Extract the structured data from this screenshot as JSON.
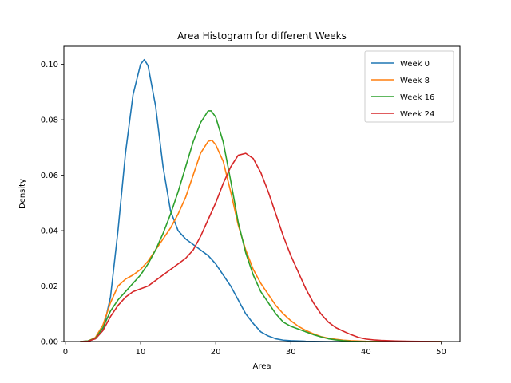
{
  "chart_data": {
    "type": "line",
    "title": "Area Histogram for different Weeks",
    "xlabel": "Area",
    "ylabel": "Density",
    "xlim": [
      -0.2,
      52.5
    ],
    "ylim": [
      0,
      0.1065
    ],
    "xticks": [
      0,
      10,
      20,
      30,
      40,
      50
    ],
    "xtick_labels": [
      "0",
      "10",
      "20",
      "30",
      "40",
      "50"
    ],
    "yticks": [
      0,
      0.02,
      0.04,
      0.06,
      0.08,
      0.1
    ],
    "ytick_labels": [
      "0.00",
      "0.02",
      "0.04",
      "0.06",
      "0.08",
      "0.10"
    ],
    "grid": false,
    "legend_position": "top-right",
    "series": [
      {
        "name": "Week 0",
        "color": "#1f77b4",
        "points": [
          [
            2,
            0
          ],
          [
            3,
            0.0002
          ],
          [
            4,
            0.001
          ],
          [
            5,
            0.004
          ],
          [
            6,
            0.016
          ],
          [
            7,
            0.04
          ],
          [
            8,
            0.068
          ],
          [
            9,
            0.089
          ],
          [
            10,
            0.1
          ],
          [
            10.5,
            0.1017
          ],
          [
            11,
            0.0995
          ],
          [
            12,
            0.085
          ],
          [
            13,
            0.063
          ],
          [
            14,
            0.047
          ],
          [
            15,
            0.04
          ],
          [
            16,
            0.037
          ],
          [
            17,
            0.035
          ],
          [
            18,
            0.033
          ],
          [
            19,
            0.031
          ],
          [
            20,
            0.028
          ],
          [
            21,
            0.024
          ],
          [
            22,
            0.02
          ],
          [
            23,
            0.015
          ],
          [
            24,
            0.01
          ],
          [
            25,
            0.0065
          ],
          [
            26,
            0.0035
          ],
          [
            27,
            0.002
          ],
          [
            28,
            0.001
          ],
          [
            29,
            0.0005
          ],
          [
            30,
            0.0003
          ],
          [
            32,
            0.0001
          ],
          [
            35,
            0
          ],
          [
            40,
            0
          ],
          [
            50,
            0
          ]
        ]
      },
      {
        "name": "Week 8",
        "color": "#ff7f0e",
        "points": [
          [
            2,
            0
          ],
          [
            3,
            0.0002
          ],
          [
            4,
            0.0015
          ],
          [
            5,
            0.006
          ],
          [
            6,
            0.014
          ],
          [
            7,
            0.02
          ],
          [
            8,
            0.0225
          ],
          [
            9,
            0.024
          ],
          [
            10,
            0.026
          ],
          [
            11,
            0.029
          ],
          [
            12,
            0.033
          ],
          [
            13,
            0.037
          ],
          [
            14,
            0.041
          ],
          [
            15,
            0.046
          ],
          [
            16,
            0.052
          ],
          [
            17,
            0.06
          ],
          [
            18,
            0.068
          ],
          [
            19,
            0.0722
          ],
          [
            19.5,
            0.0726
          ],
          [
            20,
            0.071
          ],
          [
            21,
            0.065
          ],
          [
            22,
            0.054
          ],
          [
            23,
            0.042
          ],
          [
            24,
            0.033
          ],
          [
            25,
            0.026
          ],
          [
            26,
            0.021
          ],
          [
            27,
            0.017
          ],
          [
            28,
            0.013
          ],
          [
            29,
            0.01
          ],
          [
            30,
            0.0075
          ],
          [
            31,
            0.0055
          ],
          [
            32,
            0.004
          ],
          [
            33,
            0.0028
          ],
          [
            34,
            0.0018
          ],
          [
            35,
            0.0012
          ],
          [
            36,
            0.0008
          ],
          [
            37,
            0.0005
          ],
          [
            38,
            0.0003
          ],
          [
            40,
            0.0001
          ],
          [
            45,
            0
          ],
          [
            50,
            0
          ]
        ]
      },
      {
        "name": "Week 16",
        "color": "#2ca02c",
        "points": [
          [
            2,
            0
          ],
          [
            3,
            0.0002
          ],
          [
            4,
            0.0012
          ],
          [
            5,
            0.005
          ],
          [
            6,
            0.011
          ],
          [
            7,
            0.015
          ],
          [
            8,
            0.018
          ],
          [
            9,
            0.021
          ],
          [
            10,
            0.024
          ],
          [
            11,
            0.028
          ],
          [
            12,
            0.033
          ],
          [
            13,
            0.039
          ],
          [
            14,
            0.046
          ],
          [
            15,
            0.054
          ],
          [
            16,
            0.063
          ],
          [
            17,
            0.072
          ],
          [
            18,
            0.079
          ],
          [
            19,
            0.0832
          ],
          [
            19.4,
            0.0832
          ],
          [
            20,
            0.081
          ],
          [
            21,
            0.072
          ],
          [
            22,
            0.058
          ],
          [
            23,
            0.043
          ],
          [
            24,
            0.032
          ],
          [
            25,
            0.024
          ],
          [
            26,
            0.018
          ],
          [
            27,
            0.014
          ],
          [
            28,
            0.01
          ],
          [
            29,
            0.007
          ],
          [
            30,
            0.0055
          ],
          [
            31,
            0.0045
          ],
          [
            32,
            0.0035
          ],
          [
            33,
            0.0025
          ],
          [
            34,
            0.0017
          ],
          [
            35,
            0.001
          ],
          [
            36,
            0.0006
          ],
          [
            37,
            0.0003
          ],
          [
            38,
            0.0001
          ],
          [
            40,
            0
          ],
          [
            50,
            0
          ]
        ]
      },
      {
        "name": "Week 24",
        "color": "#d62728",
        "points": [
          [
            2,
            0
          ],
          [
            3,
            0.0001
          ],
          [
            4,
            0.001
          ],
          [
            5,
            0.004
          ],
          [
            6,
            0.009
          ],
          [
            7,
            0.013
          ],
          [
            8,
            0.016
          ],
          [
            9,
            0.018
          ],
          [
            10,
            0.019
          ],
          [
            11,
            0.02
          ],
          [
            12,
            0.022
          ],
          [
            13,
            0.024
          ],
          [
            14,
            0.026
          ],
          [
            15,
            0.028
          ],
          [
            16,
            0.03
          ],
          [
            17,
            0.033
          ],
          [
            18,
            0.038
          ],
          [
            19,
            0.044
          ],
          [
            20,
            0.05
          ],
          [
            21,
            0.057
          ],
          [
            22,
            0.063
          ],
          [
            23,
            0.0672
          ],
          [
            24,
            0.0679
          ],
          [
            25,
            0.066
          ],
          [
            26,
            0.061
          ],
          [
            27,
            0.054
          ],
          [
            28,
            0.046
          ],
          [
            29,
            0.038
          ],
          [
            30,
            0.031
          ],
          [
            31,
            0.025
          ],
          [
            32,
            0.019
          ],
          [
            33,
            0.014
          ],
          [
            34,
            0.01
          ],
          [
            35,
            0.007
          ],
          [
            36,
            0.005
          ],
          [
            37,
            0.0037
          ],
          [
            38,
            0.0025
          ],
          [
            39,
            0.0015
          ],
          [
            40,
            0.0009
          ],
          [
            41,
            0.0006
          ],
          [
            42,
            0.0004
          ],
          [
            44,
            0.0002
          ],
          [
            46,
            0.0001
          ],
          [
            50,
            0
          ]
        ]
      }
    ]
  }
}
